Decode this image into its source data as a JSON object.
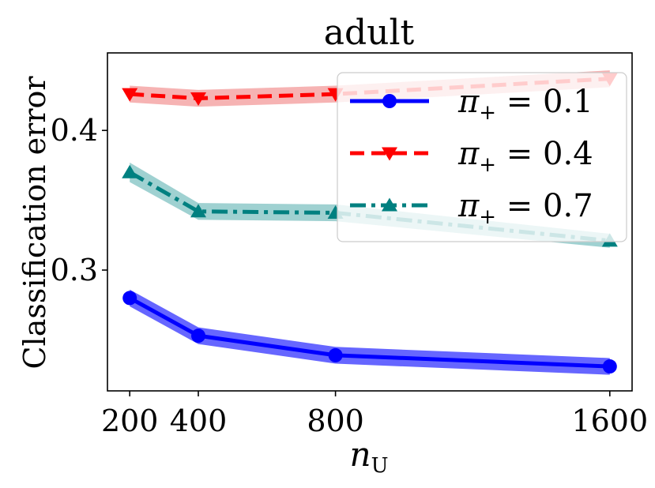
{
  "chart_data": {
    "type": "line",
    "title": "adult",
    "xlabel_base": "n",
    "xlabel_sub": "U",
    "ylabel": "Classification error",
    "x": [
      200,
      400,
      800,
      1600
    ],
    "xlim": [
      135,
      1665
    ],
    "ylim": [
      0.2135,
      0.4555
    ],
    "xticks": [
      200,
      400,
      800,
      1600
    ],
    "xtick_labels": [
      "200",
      "400",
      "800",
      "1600"
    ],
    "yticks": [
      0.3,
      0.4
    ],
    "ytick_labels": [
      "0.3",
      "0.4"
    ],
    "legend_position": "upper-right",
    "series": [
      {
        "name": "π₊ = 0.1",
        "legend_value": "0.1",
        "color": "#0000ff",
        "band_color": "#0000ff",
        "linestyle": "solid",
        "marker": "circle",
        "values": [
          0.28,
          0.253,
          0.239,
          0.231
        ],
        "band": [
          0.006,
          0.006,
          0.006,
          0.006
        ]
      },
      {
        "name": "π₊ = 0.4",
        "legend_value": "0.4",
        "color": "#ff0000",
        "band_color": "#f08080",
        "linestyle": "dashed",
        "marker": "triangle-down",
        "values": [
          0.426,
          0.423,
          0.426,
          0.437
        ],
        "band": [
          0.006,
          0.006,
          0.006,
          0.006
        ]
      },
      {
        "name": "π₊ = 0.7",
        "legend_value": "0.7",
        "color": "#008080",
        "band_color": "#5fb3b3",
        "linestyle": "dashdot",
        "marker": "triangle-up",
        "values": [
          0.37,
          0.342,
          0.341,
          0.321
        ],
        "band": [
          0.007,
          0.006,
          0.006,
          0.005
        ]
      }
    ]
  },
  "legend_symbol": "π",
  "legend_sub": "+",
  "legend_eq": "="
}
